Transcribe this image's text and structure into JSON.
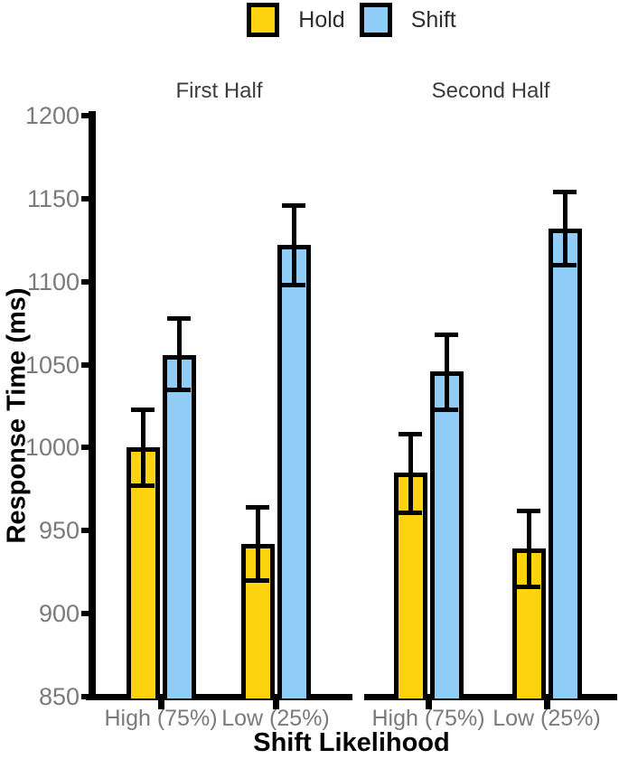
{
  "legend": {
    "items": [
      {
        "label": "Hold",
        "color": "#FDD20E"
      },
      {
        "label": "Shift",
        "color": "#8FCDF6"
      }
    ]
  },
  "y_axis": {
    "title": "Response Time (ms)",
    "ticks": [
      850,
      900,
      950,
      1000,
      1050,
      1100,
      1150,
      1200
    ]
  },
  "x_axis": {
    "title": "Shift Likelihood"
  },
  "chart_data": {
    "type": "bar",
    "title": "",
    "xlabel": "Shift Likelihood",
    "ylabel": "Response Time (ms)",
    "ylim": [
      850,
      1200
    ],
    "y_tick_step": 50,
    "grid": false,
    "error_bars": true,
    "legend_position": "top-center",
    "categories": [
      "High (75%)",
      "Low (25%)"
    ],
    "facets": [
      {
        "title": "First Half",
        "series": [
          {
            "name": "Hold",
            "color": "#FDD20E",
            "values": [
              1000,
              942
            ],
            "error_low": [
              977,
              920
            ],
            "error_high": [
              1023,
              964
            ]
          },
          {
            "name": "Shift",
            "color": "#8FCDF6",
            "values": [
              1056,
              1122
            ],
            "error_low": [
              1035,
              1098
            ],
            "error_high": [
              1078,
              1146
            ]
          }
        ]
      },
      {
        "title": "Second Half",
        "series": [
          {
            "name": "Hold",
            "color": "#FDD20E",
            "values": [
              985,
              939
            ],
            "error_low": [
              961,
              916
            ],
            "error_high": [
              1008,
              962
            ]
          },
          {
            "name": "Shift",
            "color": "#8FCDF6",
            "values": [
              1046,
              1132
            ],
            "error_low": [
              1023,
              1110
            ],
            "error_high": [
              1068,
              1154
            ]
          }
        ]
      }
    ]
  }
}
